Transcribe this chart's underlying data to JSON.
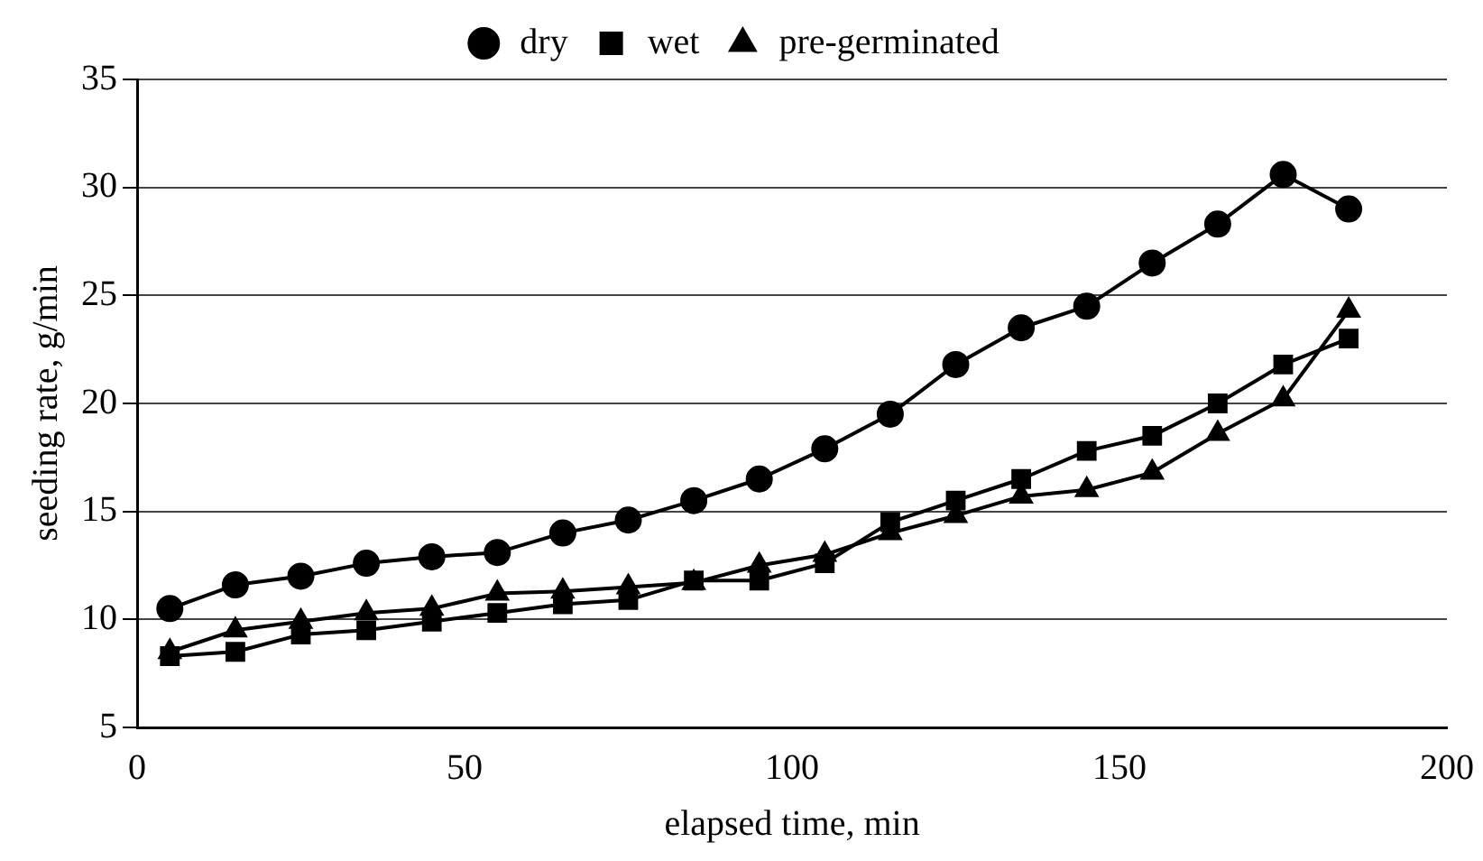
{
  "chart_data": {
    "type": "line",
    "xlabel": "elapsed time, min",
    "ylabel": "seeding rate, g/min",
    "x": [
      5,
      15,
      25,
      35,
      45,
      55,
      65,
      75,
      85,
      95,
      105,
      115,
      125,
      135,
      145,
      155,
      165,
      175,
      185
    ],
    "series": [
      {
        "name": "dry",
        "color": "#000000",
        "marker": "circle",
        "values": [
          10.5,
          11.6,
          12,
          12.6,
          12.9,
          13.1,
          14,
          14.6,
          15.5,
          16.5,
          17.9,
          19.5,
          21.8,
          23.5,
          24.5,
          26.5,
          28.3,
          30.6,
          29
        ]
      },
      {
        "name": "wet",
        "color": "#000000",
        "marker": "square",
        "values": [
          8.3,
          8.5,
          9.3,
          9.5,
          9.9,
          10.3,
          10.7,
          10.9,
          11.8,
          11.8,
          12.6,
          14.5,
          15.5,
          16.5,
          17.8,
          18.5,
          20,
          21.8,
          23
        ]
      },
      {
        "name": "pre-germinated",
        "color": "#000000",
        "marker": "triangle",
        "values": [
          8.5,
          9.5,
          9.9,
          10.3,
          10.5,
          11.2,
          11.3,
          11.5,
          11.7,
          12.5,
          13,
          14,
          14.8,
          15.7,
          16,
          16.8,
          18.6,
          20.2,
          24.3
        ]
      }
    ],
    "xlim": [
      0,
      200
    ],
    "xticks": [
      0,
      50,
      100,
      150,
      200
    ],
    "ylim": [
      5,
      35
    ],
    "yticks": [
      5,
      10,
      15,
      20,
      25,
      30,
      35
    ],
    "grid": "y",
    "legend": "top"
  }
}
